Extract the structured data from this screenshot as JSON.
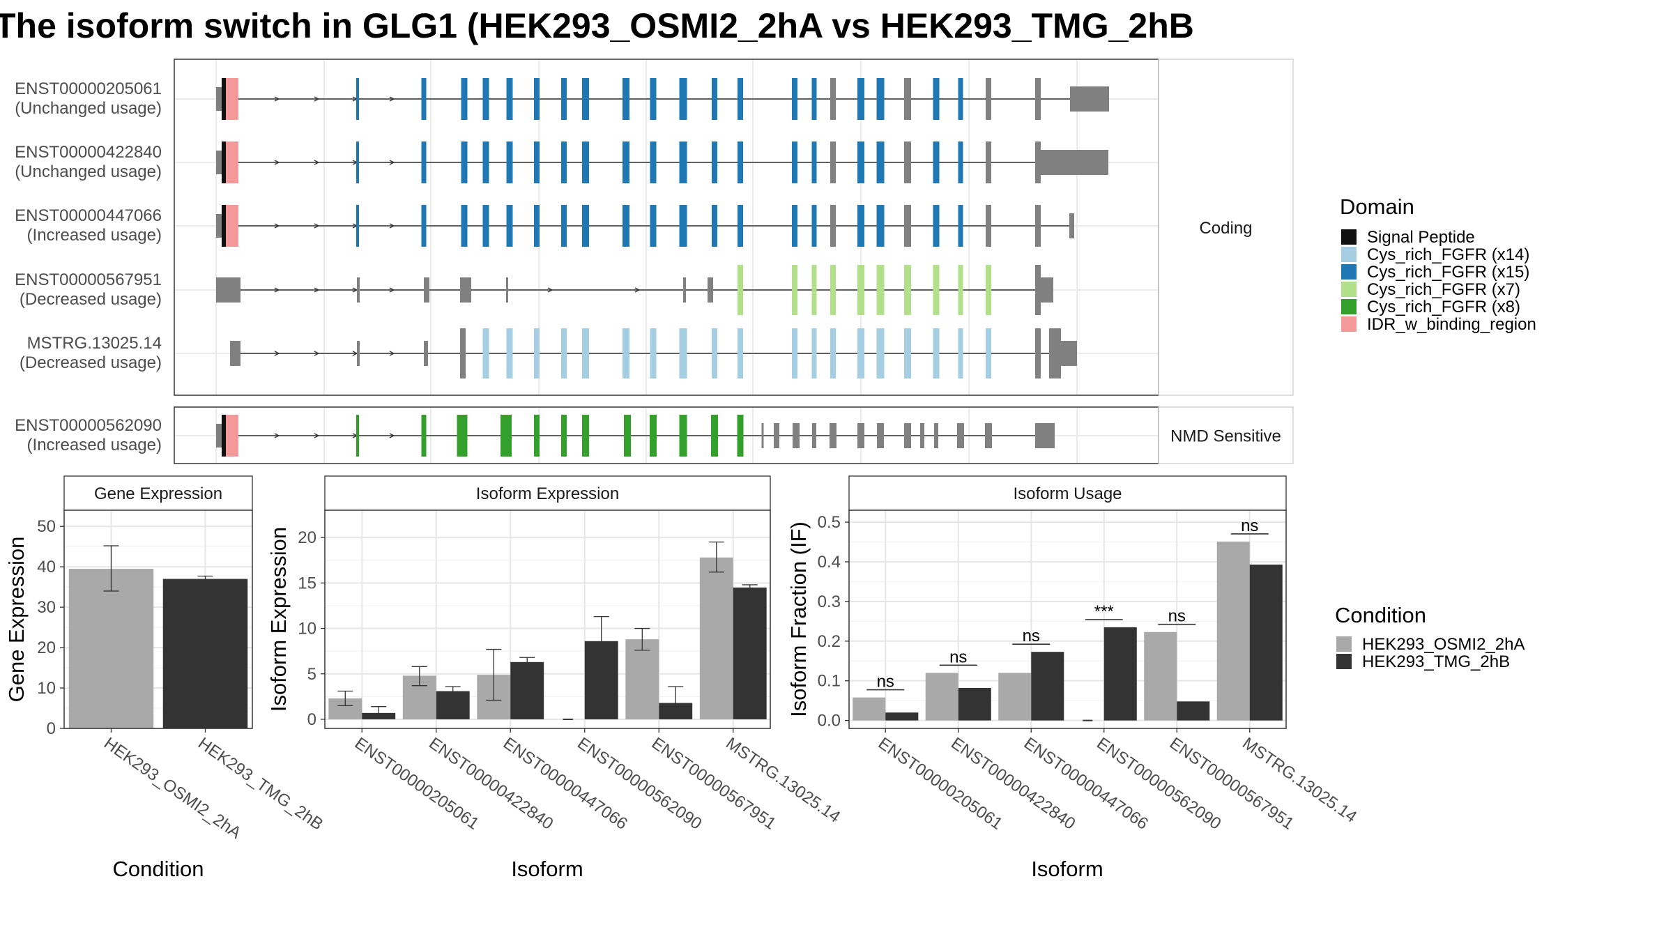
{
  "title": "The isoform switch in GLG1 (HEK293_OSMI2_2hA vs HEK293_TMG_2hB",
  "colors": {
    "domain": {
      "Signal Peptide": "#111111",
      "Cys_rich_FGFR (x14)": "#A6CEE3",
      "Cys_rich_FGFR (x15)": "#1F78B4",
      "Cys_rich_FGFR (x7)": "#B2DF8A",
      "Cys_rich_FGFR (x8)": "#33A02C",
      "IDR_w_binding_region": "#F4999A"
    },
    "condition": {
      "HEK293_OSMI2_2hA": "#A9A9A9",
      "HEK293_TMG_2hB": "#333333"
    },
    "noncoding": "#808080"
  },
  "legends": {
    "domain": {
      "title": "Domain",
      "items": [
        "Signal Peptide",
        "Cys_rich_FGFR (x14)",
        "Cys_rich_FGFR (x15)",
        "Cys_rich_FGFR (x7)",
        "Cys_rich_FGFR (x8)",
        "IDR_w_binding_region"
      ]
    },
    "condition": {
      "title": "Condition",
      "items": [
        "HEK293_OSMI2_2hA",
        "HEK293_TMG_2hB"
      ]
    }
  },
  "structure": {
    "strips": [
      "Coding",
      "NMD Sensitive"
    ],
    "coding": [
      {
        "id": "ENST00000205061",
        "usage": "(Unchanged usage)",
        "domains": [
          "Signal Peptide",
          "IDR_w_binding_region",
          "Cys_rich_FGFR (x15)"
        ]
      },
      {
        "id": "ENST00000422840",
        "usage": "(Unchanged usage)",
        "domains": [
          "Signal Peptide",
          "IDR_w_binding_region",
          "Cys_rich_FGFR (x15)"
        ]
      },
      {
        "id": "ENST00000447066",
        "usage": "(Increased usage)",
        "domains": [
          "Signal Peptide",
          "IDR_w_binding_region",
          "Cys_rich_FGFR (x15)"
        ]
      },
      {
        "id": "ENST00000567951",
        "usage": "(Decreased usage)",
        "domains": [
          "Cys_rich_FGFR (x7)"
        ]
      },
      {
        "id": "MSTRG.13025.14",
        "usage": "(Decreased usage)",
        "domains": [
          "Cys_rich_FGFR (x14)"
        ]
      }
    ],
    "nmd": [
      {
        "id": "ENST00000562090",
        "usage": "(Increased usage)",
        "domains": [
          "Signal Peptide",
          "IDR_w_binding_region",
          "Cys_rich_FGFR (x8)"
        ]
      }
    ]
  },
  "chart_data": [
    {
      "type": "bar",
      "title": "Gene Expression",
      "xlabel": "Condition",
      "ylabel": "Gene Expression",
      "categories": [
        "HEK293_OSMI2_2hA",
        "HEK293_TMG_2hB"
      ],
      "values": [
        39.5,
        37
      ],
      "errors": [
        [
          34,
          45.2
        ],
        [
          36.3,
          37.7
        ]
      ],
      "ylim": [
        0,
        54
      ],
      "yticks": [
        0,
        10,
        20,
        30,
        40,
        50
      ]
    },
    {
      "type": "bar",
      "title": "Isoform Expression",
      "xlabel": "Isoform",
      "ylabel": "Isoform Expression",
      "categories": [
        "ENST00000205061",
        "ENST00000422840",
        "ENST00000447066",
        "ENST00000562090",
        "ENST00000567951",
        "MSTRG.13025.14"
      ],
      "series": [
        {
          "name": "HEK293_OSMI2_2hA",
          "values": [
            2.3,
            4.8,
            4.9,
            0,
            8.8,
            17.8
          ],
          "errors": [
            [
              1.5,
              3.1
            ],
            [
              3.7,
              5.8
            ],
            [
              2.1,
              7.7
            ],
            [
              0,
              0
            ],
            [
              7.6,
              10.0
            ],
            [
              16.2,
              19.5
            ]
          ]
        },
        {
          "name": "HEK293_TMG_2hB",
          "values": [
            0.7,
            3.1,
            6.3,
            8.6,
            1.8,
            14.5
          ],
          "errors": [
            [
              0.1,
              1.4
            ],
            [
              2.4,
              3.6
            ],
            [
              5.8,
              6.8
            ],
            [
              6.0,
              11.3
            ],
            [
              0.1,
              3.6
            ],
            [
              14.2,
              14.8
            ]
          ]
        }
      ],
      "ylim": [
        -1,
        23
      ],
      "yticks": [
        0,
        5,
        10,
        15,
        20
      ]
    },
    {
      "type": "bar",
      "title": "Isoform Usage",
      "xlabel": "Isoform",
      "ylabel": "Isoform Fraction (IF)",
      "categories": [
        "ENST00000205061",
        "ENST00000422840",
        "ENST00000447066",
        "ENST00000562090",
        "ENST00000567951",
        "MSTRG.13025.14"
      ],
      "series": [
        {
          "name": "HEK293_OSMI2_2hA",
          "values": [
            0.058,
            0.12,
            0.12,
            0,
            0.223,
            0.451
          ]
        },
        {
          "name": "HEK293_TMG_2hB",
          "values": [
            0.02,
            0.082,
            0.173,
            0.235,
            0.048,
            0.393
          ]
        }
      ],
      "significance": [
        "ns",
        "ns",
        "ns",
        "***",
        "ns",
        "ns"
      ],
      "ylim": [
        -0.02,
        0.53
      ],
      "yticks": [
        0.0,
        0.1,
        0.2,
        0.3,
        0.4,
        0.5
      ],
      "ytick_labels": [
        "0.0",
        "0.1",
        "0.2",
        "0.3",
        "0.4",
        "0.5"
      ]
    }
  ]
}
